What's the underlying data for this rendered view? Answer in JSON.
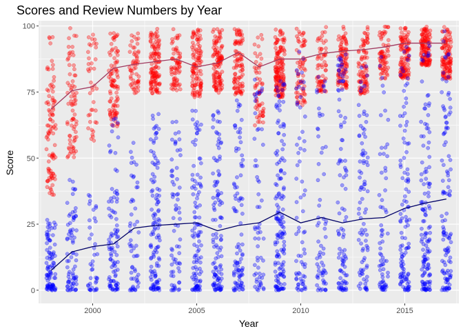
{
  "chart_data": {
    "type": "scatter",
    "title": "Scores and Review Numbers by Year",
    "xlabel": "Year",
    "ylabel": "Score",
    "xlim": [
      1997.4,
      2017.6
    ],
    "ylim": [
      -5,
      102
    ],
    "x_ticks": [
      2000,
      2005,
      2010,
      2015
    ],
    "y_ticks": [
      0,
      25,
      50,
      75,
      100
    ],
    "grid": true,
    "legend": "none",
    "background": "#ebebeb",
    "years": [
      1998,
      1999,
      2000,
      2001,
      2002,
      2003,
      2004,
      2005,
      2006,
      2007,
      2008,
      2009,
      2010,
      2011,
      2012,
      2013,
      2014,
      2015,
      2016,
      2017
    ],
    "series": [
      {
        "color": "#ff0000",
        "point_alpha": 0.35,
        "mean_line_color": "#a0395f",
        "points_per_year": [
          95,
          75,
          40,
          95,
          55,
          120,
          70,
          110,
          115,
          95,
          60,
          150,
          70,
          65,
          100,
          90,
          70,
          115,
          135,
          115
        ],
        "range_min": [
          36,
          50,
          56,
          62,
          74,
          74,
          75,
          73,
          74,
          74,
          62,
          73,
          70,
          75,
          76,
          74,
          80,
          80,
          85,
          80
        ],
        "range_max": [
          97,
          100,
          100,
          98,
          98,
          99,
          99,
          99,
          99,
          99,
          99,
          99,
          100,
          100,
          100,
          100,
          100,
          100,
          100,
          100
        ],
        "means": [
          68.5,
          75.5,
          77,
          84,
          85.5,
          86.5,
          87.5,
          84.5,
          86,
          90,
          84.5,
          87.5,
          87.5,
          89.5,
          90.5,
          91,
          92,
          93.5,
          93.5,
          93.5
        ]
      },
      {
        "color": "#0000ff",
        "point_alpha": 0.35,
        "mean_line_color": "#000066",
        "points_per_year": [
          95,
          75,
          40,
          95,
          55,
          120,
          70,
          110,
          115,
          95,
          60,
          150,
          70,
          65,
          100,
          90,
          70,
          115,
          135,
          115
        ],
        "range_min": [
          0,
          0,
          0,
          0,
          0,
          0,
          0,
          0,
          0,
          0,
          0,
          0,
          0,
          0,
          0,
          0,
          0,
          0,
          0,
          0
        ],
        "range_max": [
          28,
          42,
          38,
          65,
          62,
          68,
          64,
          68,
          68,
          72,
          80,
          80,
          92,
          85,
          90,
          86,
          90,
          94,
          95,
          98
        ],
        "means": [
          7.5,
          14.5,
          16.5,
          17.5,
          23.5,
          24.5,
          25,
          25.5,
          22.5,
          24.5,
          25.5,
          29.5,
          25.5,
          27.5,
          25.5,
          27,
          27.5,
          31,
          33,
          34.5
        ]
      }
    ]
  }
}
